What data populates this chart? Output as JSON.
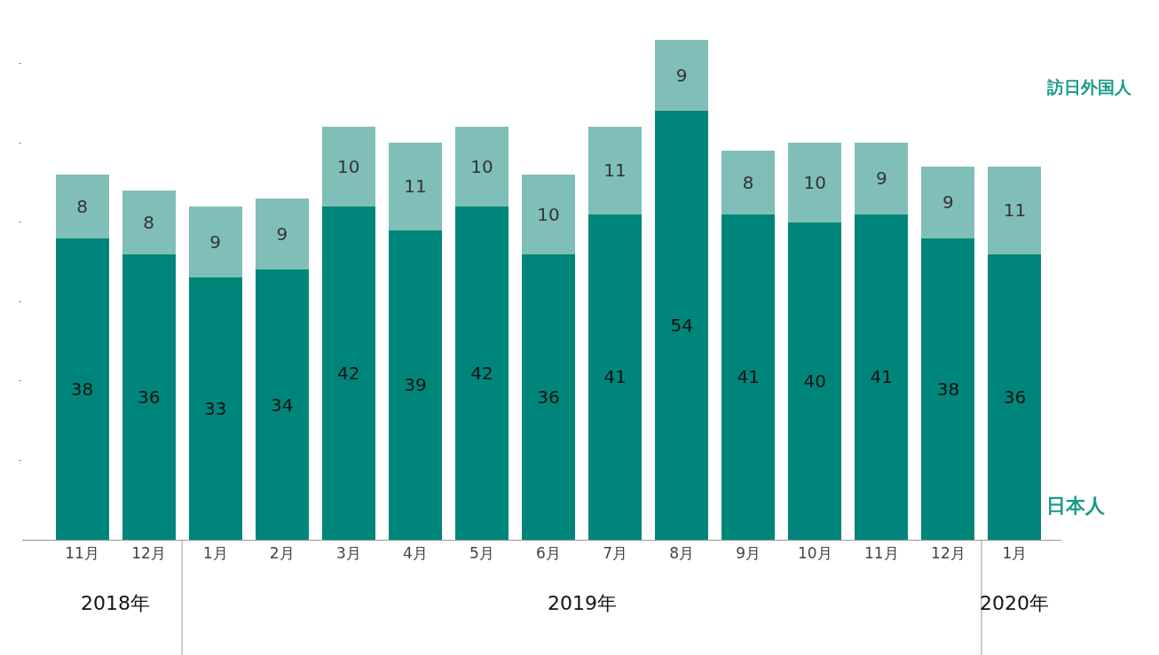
{
  "chart_data": {
    "type": "bar",
    "stacked": true,
    "data_labels": true,
    "legend": false,
    "grid": false,
    "tick_labels": "x",
    "categories": [
      "11月",
      "12月",
      "1月",
      "2月",
      "3月",
      "4月",
      "5月",
      "6月",
      "7月",
      "8月",
      "9月",
      "10月",
      "11月",
      "12月",
      "1月"
    ],
    "series": [
      {
        "name": "日本人",
        "color": "#00857a",
        "values": [
          38,
          36,
          33,
          34,
          42,
          39,
          42,
          36,
          41,
          54,
          41,
          40,
          41,
          38,
          36
        ]
      },
      {
        "name": "訪日外国人",
        "color": "#7fbfb8",
        "values": [
          8,
          8,
          9,
          9,
          10,
          11,
          10,
          10,
          11,
          9,
          8,
          10,
          9,
          9,
          11
        ]
      }
    ],
    "yticks": [
      {
        "value": 10,
        "label": null
      },
      {
        "value": 20,
        "label": null
      },
      {
        "value": 30,
        "label": null
      },
      {
        "value": 40,
        "label": null
      },
      {
        "value": 50,
        "label": null
      },
      {
        "value": 60,
        "label": null
      }
    ],
    "annotations": [
      "2018年",
      "2019年",
      "2020年"
    ]
  }
}
